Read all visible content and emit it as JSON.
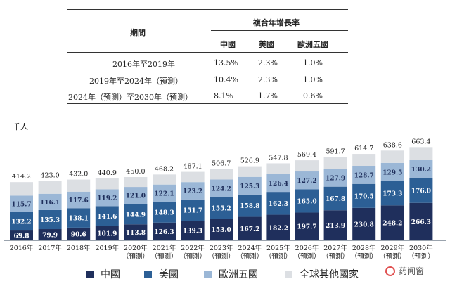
{
  "table": {
    "period_header": "期間",
    "cagr_header": "複合年增長率",
    "columns": [
      "中國",
      "美國",
      "歐洲五國"
    ],
    "rows": [
      {
        "period": "2016年至2019年",
        "values": [
          "13.5%",
          "2.3%",
          "1.0%"
        ]
      },
      {
        "period": "2019年至2024年（預測）",
        "values": [
          "10.4%",
          "2.3%",
          "1.0%"
        ]
      },
      {
        "period": "2024年（預測）至2030年（預測）",
        "values": [
          "8.1%",
          "1.7%",
          "0.6%"
        ]
      }
    ]
  },
  "watermark": "药闻窗",
  "chart_data": {
    "type": "bar",
    "stacked": true,
    "unit": "千人",
    "categories": [
      "2016年",
      "2017年",
      "2018年",
      "2019年",
      "2020年\n（預測）",
      "2021年\n（預測）",
      "2022年\n（預測）",
      "2023年\n（預測）",
      "2024年\n（預測）",
      "2025年\n（預測）",
      "2026年\n（預測）",
      "2027年\n（預測）",
      "2028年\n（預測）",
      "2029年\n（預測）",
      "2030年\n（預測）"
    ],
    "series": [
      {
        "name": "中國",
        "color": "#1f2f5c",
        "values": [
          69.8,
          79.9,
          90.6,
          101.9,
          113.8,
          126.3,
          139.3,
          153.0,
          167.2,
          182.2,
          197.7,
          213.9,
          230.8,
          248.2,
          266.3
        ]
      },
      {
        "name": "美國",
        "color": "#2c5f95",
        "values": [
          132.2,
          135.3,
          138.1,
          141.6,
          144.9,
          148.3,
          151.7,
          155.2,
          158.8,
          162.3,
          165.0,
          167.8,
          170.5,
          173.3,
          176.0
        ]
      },
      {
        "name": "歐洲五國",
        "color": "#9bb7d6",
        "values": [
          115.7,
          116.1,
          117.6,
          119.2,
          121.0,
          122.1,
          123.2,
          124.2,
          125.3,
          126.4,
          127.2,
          127.9,
          128.7,
          129.5,
          130.2
        ]
      },
      {
        "name": "全球其他國家",
        "color": "#dcdfe3",
        "values": [
          96.5,
          91.7,
          85.7,
          78.2,
          70.3,
          71.5,
          72.9,
          74.3,
          75.6,
          76.9,
          79.5,
          82.1,
          84.7,
          87.6,
          90.9
        ]
      }
    ],
    "totals": [
      414.2,
      423.0,
      432.0,
      440.9,
      450.0,
      468.2,
      487.1,
      506.7,
      526.9,
      547.8,
      569.4,
      591.7,
      614.7,
      638.6,
      663.4
    ],
    "labels": {
      "中國": [
        "69.8",
        "79.9",
        "90.6",
        "101.9",
        "113.8",
        "126.3",
        "139.3",
        "153.0",
        "167.2",
        "182.2",
        "197.7",
        "213.9",
        "230.8",
        "248.2",
        "266.3"
      ],
      "美國": [
        "132.2",
        "135.3",
        "138.1",
        "141.6",
        "144.9",
        "148.3",
        "151.7",
        "155.2",
        "158.8",
        "162.3",
        "165.0",
        "167.8",
        "170.5",
        "173.3",
        "176.0"
      ],
      "歐洲五國": [
        "115.7",
        "116.1",
        "117.6",
        "119.2",
        "121.0",
        "122.1",
        "123.2",
        "124.2",
        "125.3",
        "126.4",
        "127.2",
        "127.9",
        "128.7",
        "129.5",
        "130.2"
      ],
      "totals": [
        "414.2",
        "423.0",
        "432.0",
        "440.9",
        "450.0",
        "468.2",
        "487.1",
        "506.7",
        "526.9",
        "547.8",
        "569.4",
        "591.7",
        "614.7",
        "638.6",
        "663.4"
      ]
    },
    "legend_position": "bottom"
  }
}
